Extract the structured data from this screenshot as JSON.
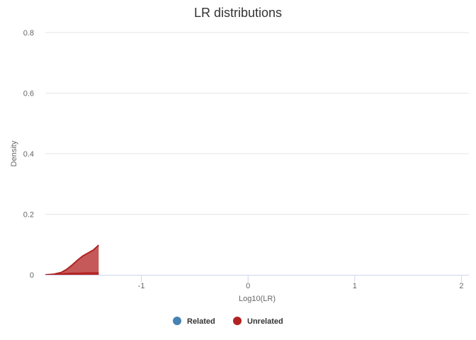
{
  "chart_data": {
    "type": "area",
    "title": "LR distributions",
    "xlabel": "Log10(LR)",
    "ylabel": "Density",
    "xlim": [
      -1.9,
      2.07
    ],
    "ylim": [
      0,
      0.8
    ],
    "xticks": [
      -1,
      0,
      1,
      2
    ],
    "yticks": [
      0,
      0.2,
      0.4,
      0.6,
      0.8
    ],
    "grid": true,
    "legend_position": "bottom-center",
    "series": [
      {
        "name": "Related",
        "color": "#4682b4",
        "x": [],
        "y": []
      },
      {
        "name": "Unrelated",
        "color": "#b22222",
        "x": [
          -1.9,
          -1.82,
          -1.75,
          -1.7,
          -1.65,
          -1.6,
          -1.55,
          -1.5,
          -1.45,
          -1.4
        ],
        "y": [
          0.0,
          0.002,
          0.008,
          0.018,
          0.032,
          0.048,
          0.062,
          0.072,
          0.082,
          0.098
        ]
      },
      {
        "name": "Unrelated",
        "color": "#b22222",
        "legend": false,
        "x": [
          -1.9,
          -1.82,
          -1.75,
          -1.7,
          -1.65,
          -1.6,
          -1.5,
          -1.4
        ],
        "y": [
          0.0,
          0.001,
          0.002,
          0.004,
          0.005,
          0.005,
          0.006,
          0.006
        ]
      }
    ]
  }
}
